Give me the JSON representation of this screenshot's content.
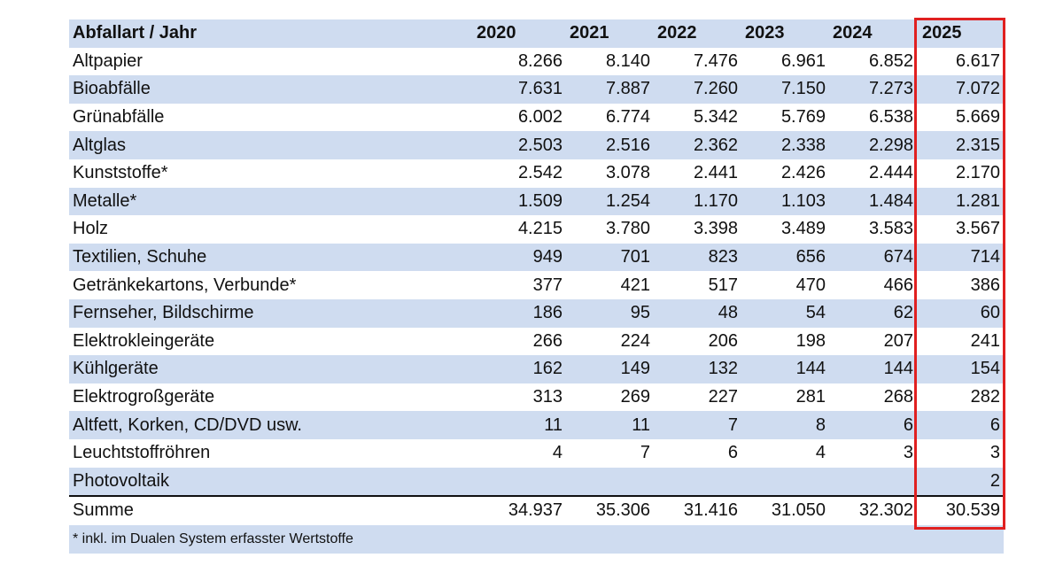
{
  "table": {
    "header": {
      "label": "Abfallart  /  Jahr",
      "years": [
        "2020",
        "2021",
        "2022",
        "2023",
        "2024",
        "2025"
      ]
    },
    "rows": [
      {
        "label": "Altpapier",
        "values": [
          "8.266",
          "8.140",
          "7.476",
          "6.961",
          "6.852",
          "6.617"
        ]
      },
      {
        "label": "Bioabfälle",
        "values": [
          "7.631",
          "7.887",
          "7.260",
          "7.150",
          "7.273",
          "7.072"
        ]
      },
      {
        "label": "Grünabfälle",
        "values": [
          "6.002",
          "6.774",
          "5.342",
          "5.769",
          "6.538",
          "5.669"
        ]
      },
      {
        "label": "Altglas",
        "values": [
          "2.503",
          "2.516",
          "2.362",
          "2.338",
          "2.298",
          "2.315"
        ]
      },
      {
        "label": "Kunststoffe*",
        "values": [
          "2.542",
          "3.078",
          "2.441",
          "2.426",
          "2.444",
          "2.170"
        ]
      },
      {
        "label": "Metalle*",
        "values": [
          "1.509",
          "1.254",
          "1.170",
          "1.103",
          "1.484",
          "1.281"
        ]
      },
      {
        "label": "Holz",
        "values": [
          "4.215",
          "3.780",
          "3.398",
          "3.489",
          "3.583",
          "3.567"
        ]
      },
      {
        "label": "Textilien, Schuhe",
        "values": [
          "949",
          "701",
          "823",
          "656",
          "674",
          "714"
        ]
      },
      {
        "label": "Getränkekartons, Verbunde*",
        "values": [
          "377",
          "421",
          "517",
          "470",
          "466",
          "386"
        ]
      },
      {
        "label": "Fernseher, Bildschirme",
        "values": [
          "186",
          "95",
          "48",
          "54",
          "62",
          "60"
        ]
      },
      {
        "label": "Elektrokleingeräte",
        "values": [
          "266",
          "224",
          "206",
          "198",
          "207",
          "241"
        ]
      },
      {
        "label": "Kühlgeräte",
        "values": [
          "162",
          "149",
          "132",
          "144",
          "144",
          "154"
        ]
      },
      {
        "label": "Elektrogroßgeräte",
        "values": [
          "313",
          "269",
          "227",
          "281",
          "268",
          "282"
        ]
      },
      {
        "label": "Altfett, Korken, CD/DVD usw.",
        "values": [
          "11",
          "11",
          "7",
          "8",
          "6",
          "6"
        ]
      },
      {
        "label": "Leuchtstoffröhren",
        "values": [
          "4",
          "7",
          "6",
          "4",
          "3",
          "3"
        ]
      },
      {
        "label": "Photovoltaik",
        "values": [
          "",
          "",
          "",
          "",
          "",
          "2"
        ]
      }
    ],
    "sum": {
      "label": "Summe",
      "values": [
        "34.937",
        "35.306",
        "31.416",
        "31.050",
        "32.302",
        "30.539"
      ]
    }
  },
  "footnote": "* inkl. im Dualen System erfasster Wertstoffe",
  "colors": {
    "row_shade": "#cfdcf0",
    "highlight": "#e02020"
  }
}
